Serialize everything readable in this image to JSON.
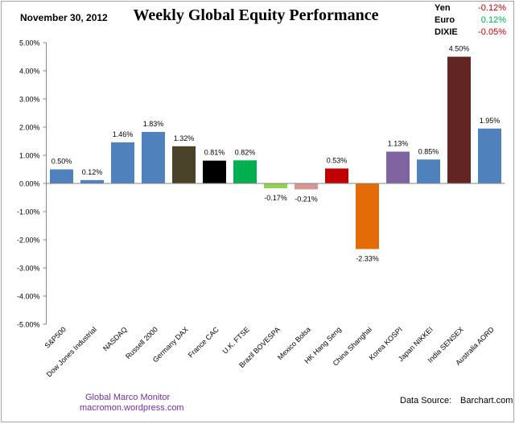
{
  "date": "November 30, 2012",
  "currencies": [
    {
      "label": "Yen",
      "value": "-0.12%",
      "color": "#c00000"
    },
    {
      "label": "Euro",
      "value": "0.12%",
      "color": "#00b050"
    },
    {
      "label": "DIXIE",
      "value": "-0.05%",
      "color": "#c00000"
    }
  ],
  "credit": {
    "line1": "Global  Marco  Monitor",
    "line2": "macromon.wordpress.com",
    "color": "#7030a0"
  },
  "source": {
    "label": "Data Source:",
    "value": "Barchart.com"
  },
  "chart_data": {
    "type": "bar",
    "title": "Weekly Global Equity Performance",
    "categories": [
      "S&P500",
      "Dow Jones Industrial",
      "NASDAQ",
      "Russell 2000",
      "Germany DAX",
      "France CAC",
      "U.K. FTSE",
      "Brazil BOVESPA",
      "Mexico Bolsa",
      "HK  Hang Seng",
      "China Shanghai",
      "Korea KOSPI",
      "Japan NIKKEI",
      "India SENSEX",
      "Australia AORD"
    ],
    "values": [
      0.5,
      0.12,
      1.46,
      1.83,
      1.32,
      0.81,
      0.82,
      -0.17,
      -0.21,
      0.53,
      -2.33,
      1.13,
      0.85,
      4.5,
      1.95
    ],
    "data_labels": [
      "0.50%",
      "0.12%",
      "1.46%",
      "1.83%",
      "1.32%",
      "0.81%",
      "0.82%",
      "-0.17%",
      "-0.21%",
      "0.53%",
      "-2.33%",
      "1.13%",
      "0.85%",
      "4.50%",
      "1.95%"
    ],
    "colors": [
      "#4f81bd",
      "#4f81bd",
      "#4f81bd",
      "#4f81bd",
      "#4a4229",
      "#000000",
      "#00b050",
      "#92d050",
      "#d99694",
      "#c00000",
      "#e36c09",
      "#8064a2",
      "#4f81bd",
      "#632523",
      "#4f81bd"
    ],
    "ylim": [
      -5,
      5
    ],
    "yticks": [
      "5.00%",
      "4.00%",
      "3.00%",
      "2.00%",
      "1.00%",
      "0.00%",
      "-1.00%",
      "-2.00%",
      "-3.00%",
      "-4.00%",
      "-5.00%"
    ],
    "xlabel": "",
    "ylabel": "",
    "grid": false,
    "legend": "none"
  }
}
